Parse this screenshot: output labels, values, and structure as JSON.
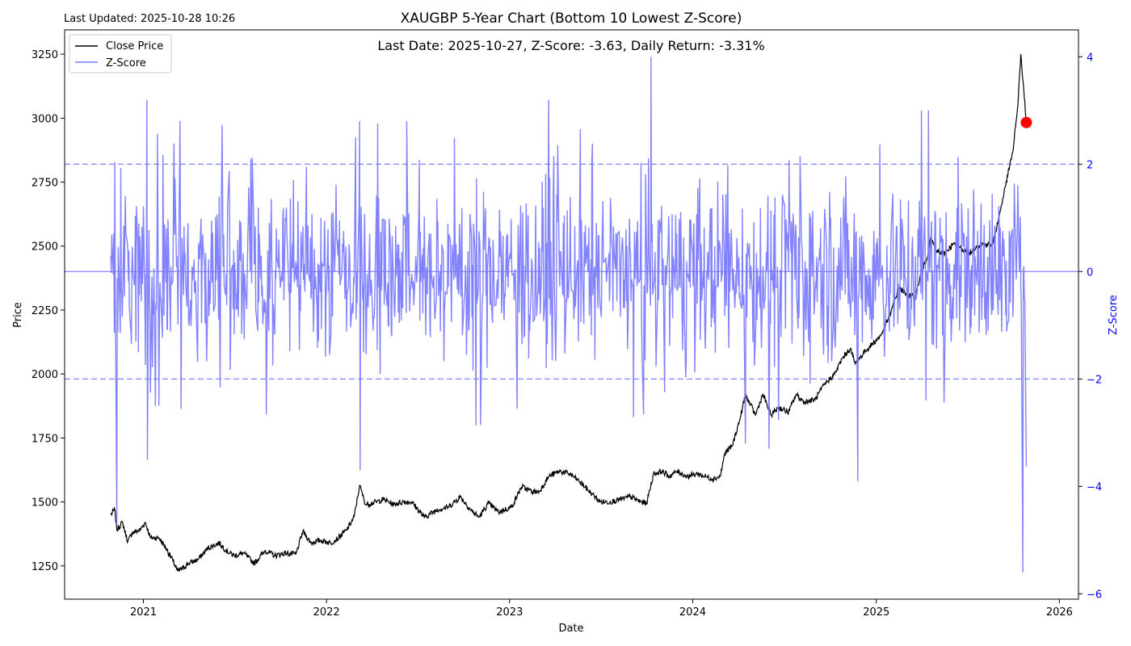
{
  "chart_data": {
    "type": "line",
    "title": "XAUGBP 5-Year Chart (Bottom 10 Lowest Z-Score)",
    "last_updated": "Last Updated: 2025-10-28 10:26",
    "annotation": "Last Date: 2025-10-27, Z-Score: -3.63, Daily Return: -3.31%",
    "xlabel": "Date",
    "ylabel_left": "Price",
    "ylabel_right": "Z-Score",
    "x_ticks": [
      "2021",
      "2022",
      "2023",
      "2024",
      "2025",
      "2026"
    ],
    "y_ticks_left": [
      1250,
      1500,
      1750,
      2000,
      2250,
      2500,
      2750,
      3000,
      3250
    ],
    "y_ticks_right": [
      -6,
      -4,
      -2,
      0,
      2,
      4
    ],
    "ylim_left": [
      1120,
      3345
    ],
    "ylim_right": [
      -6.1,
      4.5
    ],
    "xlim": [
      "2020-07-28",
      "2026-02-08"
    ],
    "grid": false,
    "legend_position": "top-left",
    "reference_lines_zscore": [
      {
        "value": 2,
        "style": "dashed"
      },
      {
        "value": 0,
        "style": "solid"
      },
      {
        "value": -2,
        "style": "dashed"
      }
    ],
    "highlight_point": {
      "date": "2025-10-27",
      "price": 2983,
      "color": "#ff0000"
    },
    "series": [
      {
        "name": "Close Price",
        "axis": "left",
        "color": "#000000",
        "points": [
          [
            "2020-10-28",
            1450
          ],
          [
            "2020-11-05",
            1470
          ],
          [
            "2020-11-09",
            1390
          ],
          [
            "2020-11-20",
            1420
          ],
          [
            "2020-12-01",
            1345
          ],
          [
            "2020-12-10",
            1380
          ],
          [
            "2020-12-25",
            1390
          ],
          [
            "2021-01-05",
            1420
          ],
          [
            "2021-01-15",
            1360
          ],
          [
            "2021-02-01",
            1360
          ],
          [
            "2021-02-15",
            1320
          ],
          [
            "2021-03-01",
            1270
          ],
          [
            "2021-03-10",
            1230
          ],
          [
            "2021-03-20",
            1240
          ],
          [
            "2021-04-01",
            1260
          ],
          [
            "2021-04-20",
            1275
          ],
          [
            "2021-05-10",
            1320
          ],
          [
            "2021-06-01",
            1340
          ],
          [
            "2021-06-15",
            1310
          ],
          [
            "2021-07-01",
            1290
          ],
          [
            "2021-07-20",
            1300
          ],
          [
            "2021-08-10",
            1260
          ],
          [
            "2021-09-01",
            1310
          ],
          [
            "2021-09-20",
            1290
          ],
          [
            "2021-10-10",
            1300
          ],
          [
            "2021-11-01",
            1295
          ],
          [
            "2021-11-15",
            1385
          ],
          [
            "2021-12-01",
            1340
          ],
          [
            "2021-12-20",
            1350
          ],
          [
            "2022-01-10",
            1340
          ],
          [
            "2022-01-25",
            1360
          ],
          [
            "2022-02-10",
            1390
          ],
          [
            "2022-02-25",
            1440
          ],
          [
            "2022-03-08",
            1565
          ],
          [
            "2022-03-20",
            1490
          ],
          [
            "2022-04-10",
            1500
          ],
          [
            "2022-04-25",
            1510
          ],
          [
            "2022-05-15",
            1490
          ],
          [
            "2022-06-01",
            1500
          ],
          [
            "2022-06-20",
            1500
          ],
          [
            "2022-07-15",
            1440
          ],
          [
            "2022-08-10",
            1470
          ],
          [
            "2022-09-01",
            1480
          ],
          [
            "2022-09-25",
            1520
          ],
          [
            "2022-10-15",
            1470
          ],
          [
            "2022-11-01",
            1440
          ],
          [
            "2022-11-20",
            1495
          ],
          [
            "2022-12-10",
            1460
          ],
          [
            "2023-01-05",
            1480
          ],
          [
            "2023-01-25",
            1560
          ],
          [
            "2023-02-15",
            1540
          ],
          [
            "2023-03-01",
            1540
          ],
          [
            "2023-03-20",
            1600
          ],
          [
            "2023-04-10",
            1620
          ],
          [
            "2023-05-01",
            1610
          ],
          [
            "2023-05-20",
            1580
          ],
          [
            "2023-06-15",
            1530
          ],
          [
            "2023-07-01",
            1500
          ],
          [
            "2023-07-20",
            1500
          ],
          [
            "2023-08-10",
            1510
          ],
          [
            "2023-08-30",
            1520
          ],
          [
            "2023-09-20",
            1500
          ],
          [
            "2023-10-01",
            1495
          ],
          [
            "2023-10-15",
            1610
          ],
          [
            "2023-11-01",
            1620
          ],
          [
            "2023-11-15",
            1600
          ],
          [
            "2023-12-01",
            1620
          ],
          [
            "2023-12-20",
            1600
          ],
          [
            "2024-01-10",
            1610
          ],
          [
            "2024-01-25",
            1600
          ],
          [
            "2024-02-10",
            1590
          ],
          [
            "2024-02-25",
            1600
          ],
          [
            "2024-03-05",
            1690
          ],
          [
            "2024-03-20",
            1720
          ],
          [
            "2024-04-05",
            1830
          ],
          [
            "2024-04-15",
            1920
          ],
          [
            "2024-04-25",
            1880
          ],
          [
            "2024-05-05",
            1840
          ],
          [
            "2024-05-20",
            1920
          ],
          [
            "2024-06-05",
            1840
          ],
          [
            "2024-06-20",
            1870
          ],
          [
            "2024-07-10",
            1850
          ],
          [
            "2024-07-25",
            1920
          ],
          [
            "2024-08-10",
            1890
          ],
          [
            "2024-09-01",
            1900
          ],
          [
            "2024-09-20",
            1960
          ],
          [
            "2024-10-10",
            2000
          ],
          [
            "2024-10-25",
            2060
          ],
          [
            "2024-11-10",
            2100
          ],
          [
            "2024-11-20",
            2040
          ],
          [
            "2024-12-10",
            2090
          ],
          [
            "2025-01-10",
            2150
          ],
          [
            "2025-01-30",
            2240
          ],
          [
            "2025-02-15",
            2340
          ],
          [
            "2025-03-01",
            2310
          ],
          [
            "2025-03-20",
            2300
          ],
          [
            "2025-04-01",
            2400
          ],
          [
            "2025-04-10",
            2440
          ],
          [
            "2025-04-20",
            2530
          ],
          [
            "2025-05-01",
            2480
          ],
          [
            "2025-05-15",
            2470
          ],
          [
            "2025-06-05",
            2510
          ],
          [
            "2025-06-20",
            2490
          ],
          [
            "2025-07-05",
            2470
          ],
          [
            "2025-07-20",
            2500
          ],
          [
            "2025-08-05",
            2510
          ],
          [
            "2025-08-20",
            2500
          ],
          [
            "2025-09-01",
            2600
          ],
          [
            "2025-09-15",
            2730
          ],
          [
            "2025-10-01",
            2880
          ],
          [
            "2025-10-10",
            3050
          ],
          [
            "2025-10-16",
            3250
          ],
          [
            "2025-10-20",
            3150
          ],
          [
            "2025-10-23",
            3080
          ],
          [
            "2025-10-27",
            2983
          ]
        ]
      },
      {
        "name": "Z-Score",
        "axis": "right",
        "color": "#7b7bff",
        "extremes": [
          [
            "2020-11-09",
            -4.7
          ],
          [
            "2021-01-08",
            3.2
          ],
          [
            "2021-01-09",
            -3.5
          ],
          [
            "2021-02-01",
            -2.5
          ],
          [
            "2022-03-08",
            2.8
          ],
          [
            "2022-03-09",
            -3.7
          ],
          [
            "2022-06-10",
            2.8
          ],
          [
            "2023-03-20",
            3.2
          ],
          [
            "2023-10-10",
            4.0
          ],
          [
            "2024-04-15",
            -3.2
          ],
          [
            "2024-06-01",
            -3.3
          ],
          [
            "2024-11-25",
            -3.9
          ],
          [
            "2025-04-01",
            3.0
          ],
          [
            "2025-04-10",
            -2.4
          ],
          [
            "2025-04-15",
            3.0
          ],
          [
            "2025-10-20",
            -5.6
          ],
          [
            "2025-10-27",
            -3.63
          ]
        ]
      }
    ]
  }
}
